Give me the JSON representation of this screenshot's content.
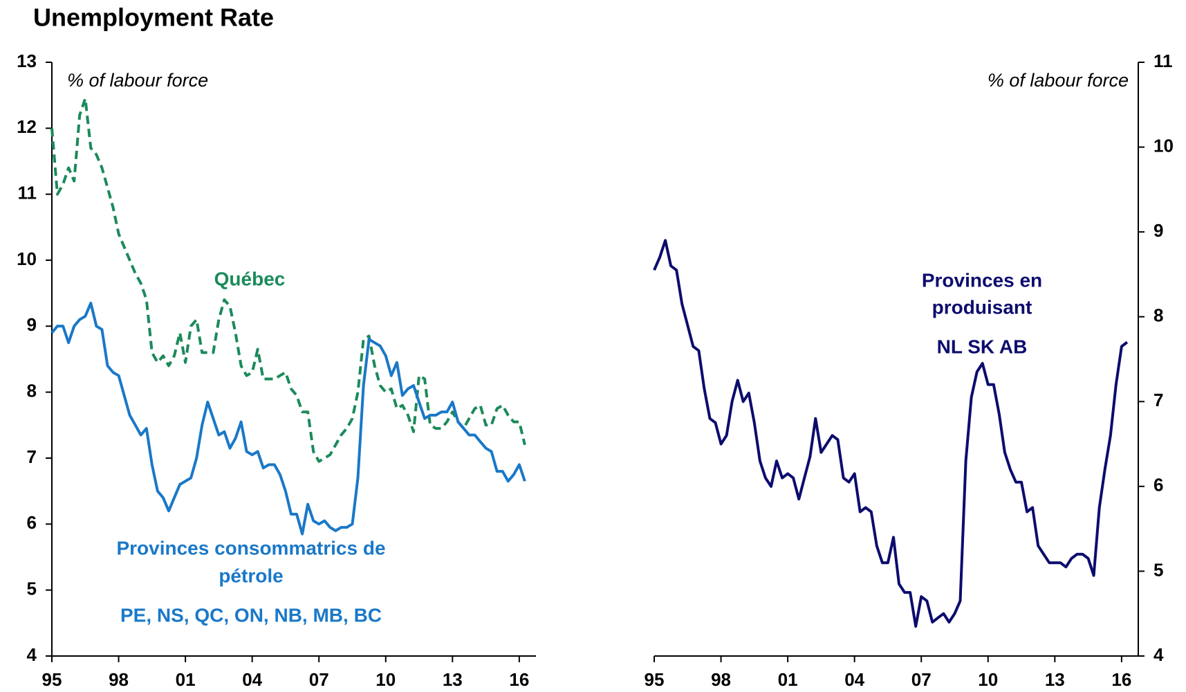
{
  "title": "Unemployment Rate",
  "chart_data": [
    {
      "type": "line",
      "axis_side": "left",
      "y_axis_label": "% of labour force",
      "x": [
        1995,
        1995.25,
        1995.5,
        1995.75,
        1996,
        1996.25,
        1996.5,
        1996.75,
        1997,
        1997.25,
        1997.5,
        1997.75,
        1998,
        1998.25,
        1998.5,
        1998.75,
        1999,
        1999.25,
        1999.5,
        1999.75,
        2000,
        2000.25,
        2000.5,
        2000.75,
        2001,
        2001.25,
        2001.5,
        2001.75,
        2002,
        2002.25,
        2002.5,
        2002.75,
        2003,
        2003.25,
        2003.5,
        2003.75,
        2004,
        2004.25,
        2004.5,
        2004.75,
        2005,
        2005.25,
        2005.5,
        2005.75,
        2006,
        2006.25,
        2006.5,
        2006.75,
        2007,
        2007.25,
        2007.5,
        2007.75,
        2008,
        2008.25,
        2008.5,
        2008.75,
        2009,
        2009.25,
        2009.5,
        2009.75,
        2010,
        2010.25,
        2010.5,
        2010.75,
        2011,
        2011.25,
        2011.5,
        2011.75,
        2012,
        2012.25,
        2012.5,
        2012.75,
        2013,
        2013.25,
        2013.5,
        2013.75,
        2014,
        2014.25,
        2014.5,
        2014.75,
        2015,
        2015.25,
        2015.5,
        2015.75,
        2016,
        2016.25
      ],
      "series": [
        {
          "color": "#1b8a5a",
          "dashed": true,
          "values": [
            12.0,
            11.0,
            11.15,
            11.4,
            11.2,
            12.2,
            12.45,
            11.7,
            11.6,
            11.4,
            11.1,
            10.8,
            10.4,
            10.2,
            10.0,
            9.8,
            9.65,
            9.4,
            8.6,
            8.45,
            8.55,
            8.4,
            8.55,
            8.9,
            8.45,
            9.0,
            9.1,
            8.6,
            8.6,
            8.6,
            9.1,
            9.4,
            9.3,
            8.9,
            8.4,
            8.25,
            8.3,
            8.65,
            8.2,
            8.2,
            8.2,
            8.25,
            8.3,
            8.05,
            7.95,
            7.7,
            7.7,
            7.1,
            6.95,
            7.0,
            7.05,
            7.2,
            7.35,
            7.45,
            7.6,
            8.0,
            8.8,
            8.85,
            8.4,
            8.1,
            8.0,
            8.05,
            7.75,
            7.8,
            7.65,
            7.4,
            8.25,
            8.2,
            7.5,
            7.45,
            7.45,
            7.55,
            7.7,
            7.55,
            7.45,
            7.6,
            7.75,
            7.8,
            7.5,
            7.5,
            7.75,
            7.8,
            7.65,
            7.55,
            7.55,
            7.2
          ]
        },
        {
          "color": "#1a78c8",
          "dashed": false,
          "values": [
            8.9,
            9.0,
            9.0,
            8.75,
            9.0,
            9.1,
            9.15,
            9.35,
            9.0,
            8.95,
            8.4,
            8.3,
            8.25,
            7.95,
            7.65,
            7.5,
            7.35,
            7.45,
            6.9,
            6.5,
            6.4,
            6.2,
            6.4,
            6.6,
            6.65,
            6.7,
            7.0,
            7.5,
            7.85,
            7.6,
            7.35,
            7.4,
            7.15,
            7.3,
            7.55,
            7.1,
            7.05,
            7.1,
            6.85,
            6.9,
            6.9,
            6.75,
            6.5,
            6.15,
            6.15,
            5.85,
            6.3,
            6.05,
            6.0,
            6.05,
            5.95,
            5.9,
            5.95,
            5.95,
            6.0,
            6.7,
            8.1,
            8.8,
            8.75,
            8.7,
            8.55,
            8.25,
            8.45,
            7.95,
            8.05,
            8.1,
            7.85,
            7.6,
            7.65,
            7.65,
            7.7,
            7.7,
            7.85,
            7.55,
            7.45,
            7.35,
            7.35,
            7.25,
            7.15,
            7.1,
            6.8,
            6.8,
            6.65,
            6.75,
            6.9,
            6.65
          ]
        }
      ],
      "annotations": [
        {
          "text": "Québec",
          "color": "#1b8a5a"
        },
        {
          "text": "Provinces consommatrics de",
          "color": "#1a78c8"
        },
        {
          "text": "pétrole",
          "color": "#1a78c8"
        },
        {
          "text": "PE, NS, QC, ON,  NB, MB, BC",
          "color": "#1a78c8"
        }
      ],
      "xlim": [
        1995,
        2016.75
      ],
      "ylim": [
        4,
        13
      ],
      "xticks": [
        {
          "value": 1995,
          "label": "95"
        },
        {
          "value": 1998,
          "label": "98"
        },
        {
          "value": 2001,
          "label": "01"
        },
        {
          "value": 2004,
          "label": "04"
        },
        {
          "value": 2007,
          "label": "07"
        },
        {
          "value": 2010,
          "label": "10"
        },
        {
          "value": 2013,
          "label": "13"
        },
        {
          "value": 2016,
          "label": "16"
        }
      ],
      "yticks": [
        4,
        5,
        6,
        7,
        8,
        9,
        10,
        11,
        12,
        13
      ]
    },
    {
      "type": "line",
      "axis_side": "right",
      "y_axis_label": "% of labour force",
      "x": [
        1995,
        1995.25,
        1995.5,
        1995.75,
        1996,
        1996.25,
        1996.5,
        1996.75,
        1997,
        1997.25,
        1997.5,
        1997.75,
        1998,
        1998.25,
        1998.5,
        1998.75,
        1999,
        1999.25,
        1999.5,
        1999.75,
        2000,
        2000.25,
        2000.5,
        2000.75,
        2001,
        2001.25,
        2001.5,
        2001.75,
        2002,
        2002.25,
        2002.5,
        2002.75,
        2003,
        2003.25,
        2003.5,
        2003.75,
        2004,
        2004.25,
        2004.5,
        2004.75,
        2005,
        2005.25,
        2005.5,
        2005.75,
        2006,
        2006.25,
        2006.5,
        2006.75,
        2007,
        2007.25,
        2007.5,
        2007.75,
        2008,
        2008.25,
        2008.5,
        2008.75,
        2009,
        2009.25,
        2009.5,
        2009.75,
        2010,
        2010.25,
        2010.5,
        2010.75,
        2011,
        2011.25,
        2011.5,
        2011.75,
        2012,
        2012.25,
        2012.5,
        2012.75,
        2013,
        2013.25,
        2013.5,
        2013.75,
        2014,
        2014.25,
        2014.5,
        2014.75,
        2015,
        2015.25,
        2015.5,
        2015.75,
        2016,
        2016.25
      ],
      "series": [
        {
          "color": "#0c0c6e",
          "dashed": false,
          "values": [
            8.55,
            8.7,
            8.9,
            8.6,
            8.55,
            8.15,
            7.9,
            7.65,
            7.6,
            7.15,
            6.8,
            6.75,
            6.5,
            6.6,
            7.0,
            7.25,
            7.0,
            7.1,
            6.75,
            6.3,
            6.1,
            6.0,
            6.3,
            6.1,
            6.15,
            6.1,
            5.85,
            6.1,
            6.35,
            6.8,
            6.4,
            6.5,
            6.6,
            6.55,
            6.1,
            6.05,
            6.15,
            5.7,
            5.75,
            5.7,
            5.3,
            5.1,
            5.1,
            5.4,
            4.85,
            4.75,
            4.75,
            4.35,
            4.7,
            4.65,
            4.4,
            4.45,
            4.5,
            4.4,
            4.5,
            4.65,
            6.3,
            7.05,
            7.35,
            7.45,
            7.2,
            7.2,
            6.85,
            6.4,
            6.2,
            6.05,
            6.05,
            5.7,
            5.75,
            5.3,
            5.2,
            5.1,
            5.1,
            5.1,
            5.05,
            5.15,
            5.2,
            5.2,
            5.15,
            4.95,
            5.75,
            6.2,
            6.6,
            7.2,
            7.65,
            7.7
          ]
        }
      ],
      "annotations": [
        {
          "text": "Provinces en",
          "color": "#0c0c6e"
        },
        {
          "text": "produisant",
          "color": "#0c0c6e"
        },
        {
          "text": "NL SK AB",
          "color": "#0c0c6e"
        }
      ],
      "xlim": [
        1995,
        2016.75
      ],
      "ylim": [
        4,
        11
      ],
      "xticks": [
        {
          "value": 1995,
          "label": "95"
        },
        {
          "value": 1998,
          "label": "98"
        },
        {
          "value": 2001,
          "label": "01"
        },
        {
          "value": 2004,
          "label": "04"
        },
        {
          "value": 2007,
          "label": "07"
        },
        {
          "value": 2010,
          "label": "10"
        },
        {
          "value": 2013,
          "label": "13"
        },
        {
          "value": 2016,
          "label": "16"
        }
      ],
      "yticks": [
        4,
        5,
        6,
        7,
        8,
        9,
        10,
        11
      ]
    }
  ]
}
